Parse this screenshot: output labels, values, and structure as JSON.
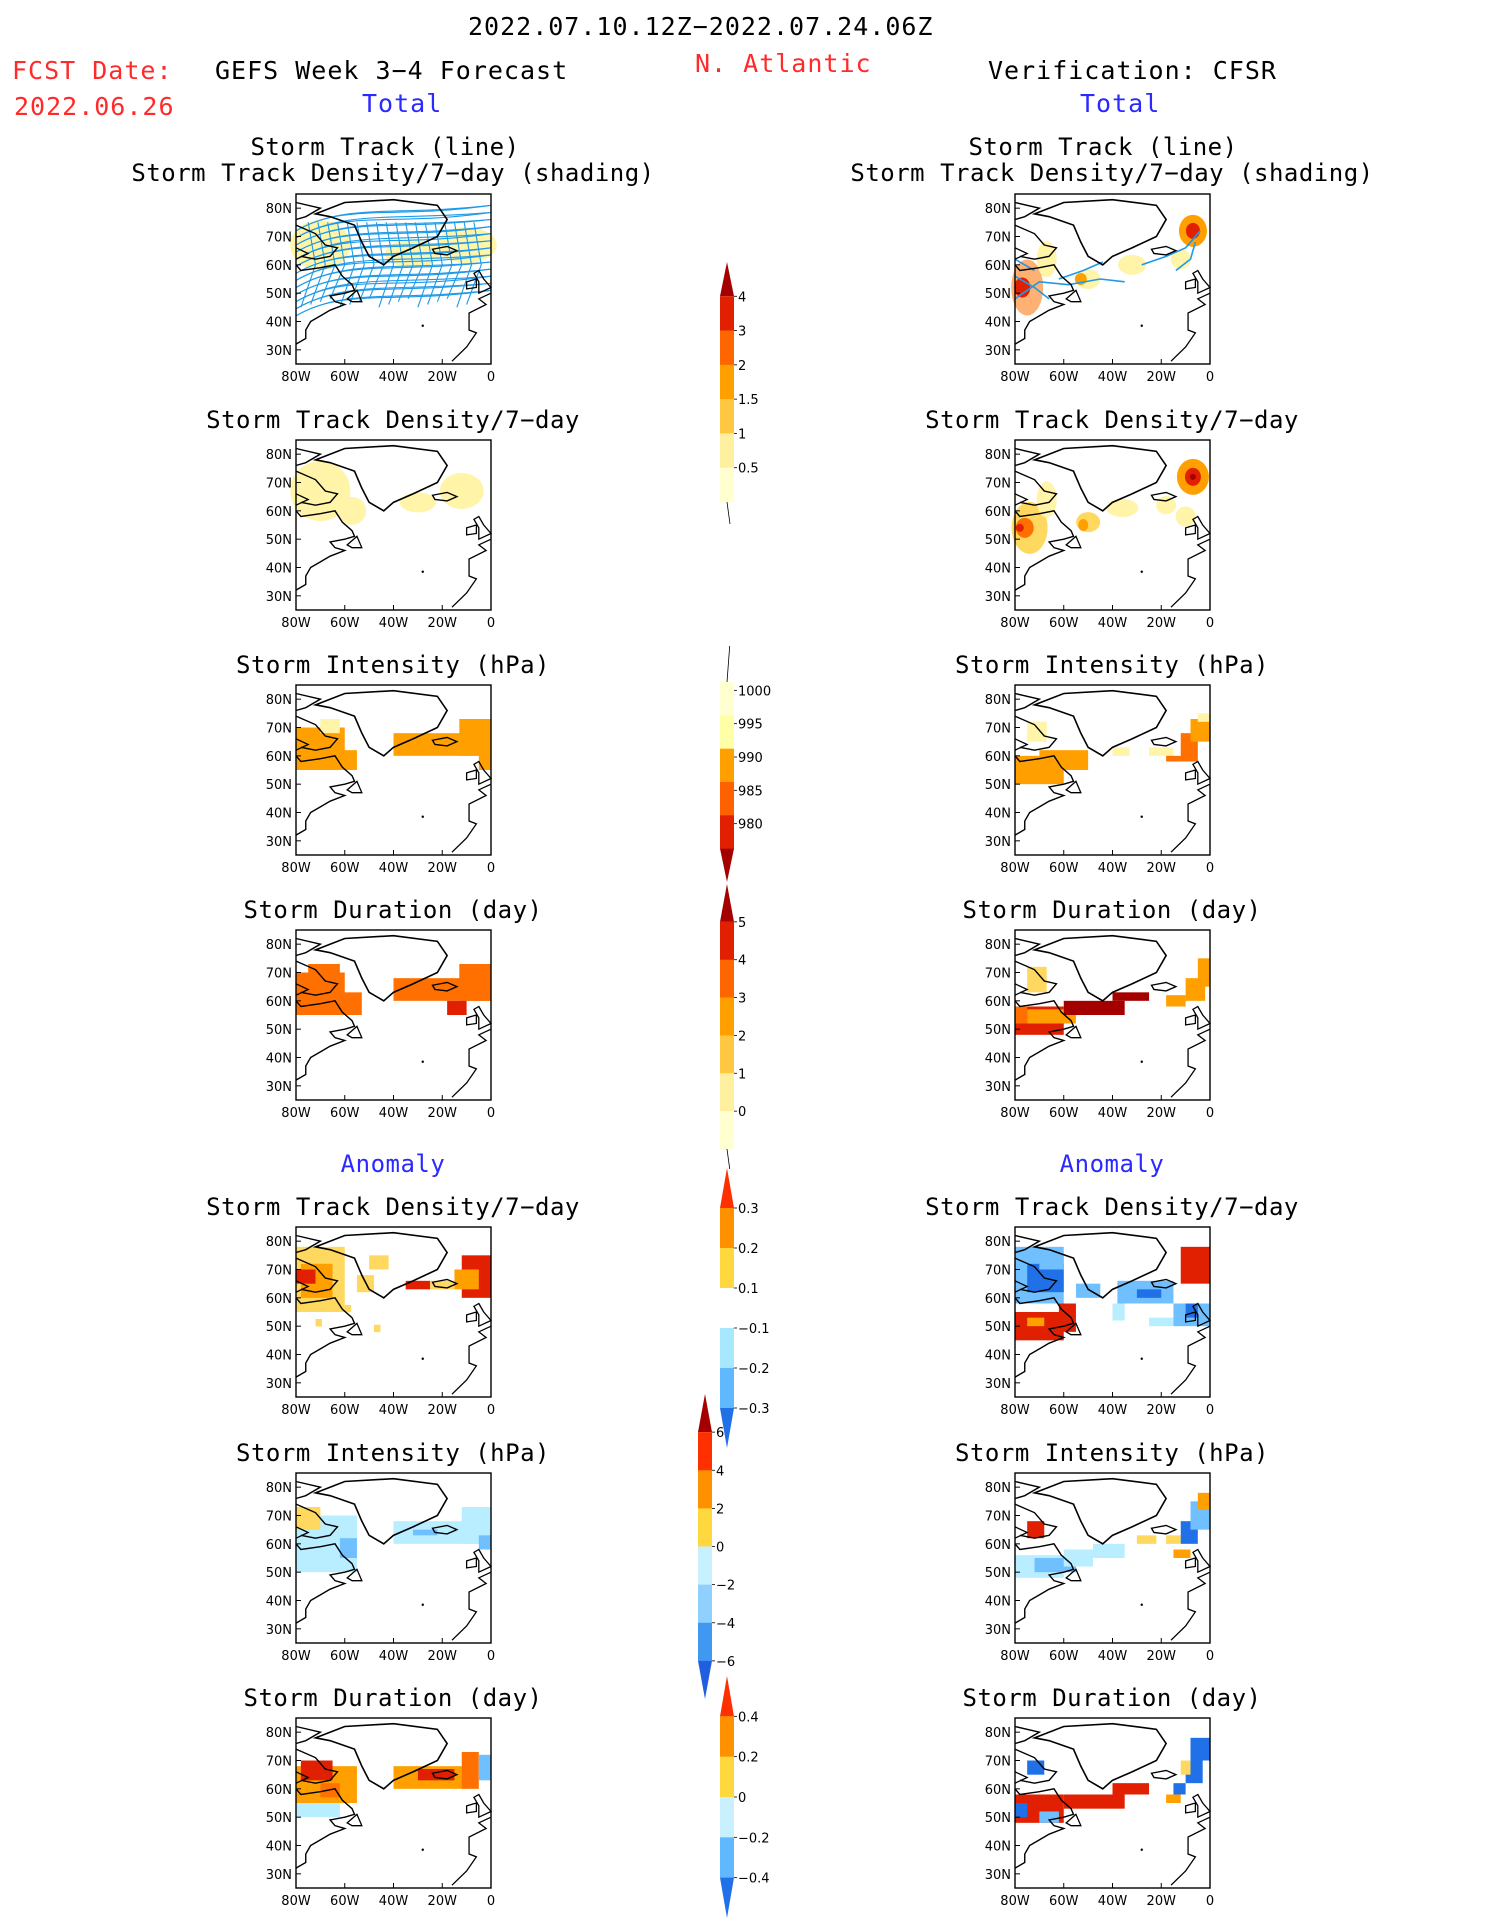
{
  "header": {
    "date_range": "2022.07.10.12Z−2022.07.24.06Z",
    "fcst_label": "FCST Date:",
    "fcst_date": "2022.06.26",
    "forecast_title": "GEFS Week 3−4 Forecast",
    "region": "N. Atlantic",
    "verification": "Verification: CFSR",
    "total_left": "Total",
    "total_right": "Total"
  },
  "section_labels": {
    "anomaly_left": "Anomaly",
    "anomaly_right": "Anomaly"
  },
  "panel_titles": {
    "track_line": "Storm Track (line)",
    "track_shading": "Storm Track Density/7−day (shading)",
    "density": "Storm Track Density/7−day",
    "intensity": "Storm Intensity (hPa)",
    "duration": "Storm Duration (day)"
  },
  "map_axes": {
    "lat_labels": [
      "80N",
      "70N",
      "60N",
      "50N",
      "40N",
      "30N"
    ],
    "lon_labels": [
      "80W",
      "60W",
      "40W",
      "20W",
      "0"
    ]
  },
  "colorbars": {
    "density_total": {
      "labels": [
        "4",
        "3",
        "2",
        "1.5",
        "1",
        "0.5"
      ],
      "colors": [
        "#a50000",
        "#e02000",
        "#ff6600",
        "#ffa000",
        "#ffc840",
        "#fff0a0",
        "#ffffd0"
      ]
    },
    "intensity_total": {
      "labels": [
        "1000",
        "995",
        "990",
        "985",
        "980"
      ],
      "colors": [
        "#ffffd0",
        "#ffffa8",
        "#ffa000",
        "#ff6000",
        "#e02000",
        "#a50000"
      ]
    },
    "duration_total": {
      "labels": [
        "5",
        "4",
        "3",
        "2",
        "1",
        "0"
      ],
      "colors": [
        "#a50000",
        "#e02000",
        "#ff6600",
        "#ffa000",
        "#ffc840",
        "#fff0a0",
        "#ffffd0"
      ]
    },
    "density_anom": {
      "labels": [
        "0.3",
        "0.2",
        "0.1",
        "−0.1",
        "−0.2",
        "−0.3"
      ],
      "colors": [
        "#ff3000",
        "#ff9000",
        "#ffd840",
        "#ffffff",
        "#a8e8ff",
        "#60b8ff",
        "#2070e8"
      ]
    },
    "intensity_anom": {
      "labels": [
        "6",
        "4",
        "2",
        "0",
        "−2",
        "−4",
        "−6"
      ],
      "colors": [
        "#a50000",
        "#ff3000",
        "#ff9000",
        "#ffd840",
        "#c8f0ff",
        "#90d0ff",
        "#4098f0",
        "#2060e0"
      ]
    },
    "duration_anom": {
      "labels": [
        "0.4",
        "0.2",
        "0",
        "−0.2",
        "−0.4"
      ],
      "colors": [
        "#ff3000",
        "#ff9000",
        "#ffd840",
        "#c8f0ff",
        "#60b8ff",
        "#2070e8"
      ]
    }
  }
}
